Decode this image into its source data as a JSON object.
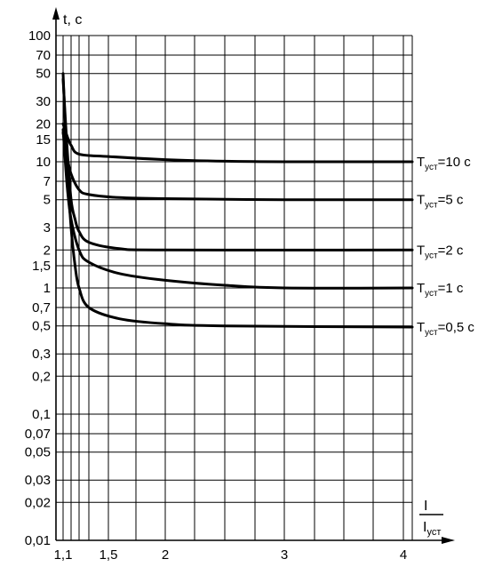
{
  "chart_data": {
    "type": "line",
    "ylabel": "t, с",
    "xlabel_num": "I",
    "xlabel_den_main": "I",
    "xlabel_den_sub": "уст",
    "x_ticks": [
      {
        "value": 1.1,
        "label": "1,1"
      },
      {
        "value": 1.5,
        "label": "1,5"
      },
      {
        "value": 2,
        "label": "2"
      },
      {
        "value": 3,
        "label": "3"
      },
      {
        "value": 4,
        "label": "4"
      }
    ],
    "y_ticks": [
      {
        "value": 100,
        "label": "100"
      },
      {
        "value": 70,
        "label": "70"
      },
      {
        "value": 50,
        "label": "50"
      },
      {
        "value": 30,
        "label": "30"
      },
      {
        "value": 20,
        "label": "20"
      },
      {
        "value": 15,
        "label": "15"
      },
      {
        "value": 10,
        "label": "10"
      },
      {
        "value": 7,
        "label": "7"
      },
      {
        "value": 5,
        "label": "5"
      },
      {
        "value": 3,
        "label": "3"
      },
      {
        "value": 2,
        "label": "2"
      },
      {
        "value": 1.5,
        "label": "1,5"
      },
      {
        "value": 1,
        "label": "1"
      },
      {
        "value": 0.7,
        "label": "0,7"
      },
      {
        "value": 0.5,
        "label": "0,5"
      },
      {
        "value": 0.3,
        "label": "0,3"
      },
      {
        "value": 0.2,
        "label": "0,2"
      },
      {
        "value": 0.1,
        "label": "0,1"
      },
      {
        "value": 0.07,
        "label": "0,07"
      },
      {
        "value": 0.05,
        "label": "0,05"
      },
      {
        "value": 0.03,
        "label": "0,03"
      },
      {
        "value": 0.02,
        "label": "0,02"
      },
      {
        "value": 0.01,
        "label": "0,01"
      }
    ],
    "x_gridlines": [
      1.1,
      1.2,
      1.3,
      1.4,
      1.5,
      1.75,
      2,
      2.25,
      2.5,
      2.75,
      3,
      3.25,
      3.5,
      3.75,
      4,
      4.25
    ],
    "xlim": [
      1.05,
      4.25
    ],
    "ylim": [
      0.01,
      100
    ],
    "yscale": "log",
    "grid": true,
    "series": [
      {
        "name": "Tуст=10 с",
        "label_main": "T",
        "label_sub": "уст",
        "label_tail": "=10 с",
        "points": [
          [
            1.1,
            20
          ],
          [
            1.15,
            16
          ],
          [
            1.2,
            13.5
          ],
          [
            1.3,
            11.5
          ],
          [
            1.5,
            11
          ],
          [
            2,
            10.4
          ],
          [
            2.5,
            10.1
          ],
          [
            3,
            10
          ],
          [
            4.25,
            10
          ]
        ]
      },
      {
        "name": "Tуст=5 с",
        "label_main": "T",
        "label_sub": "уст",
        "label_tail": "=5 с",
        "points": [
          [
            1.1,
            17
          ],
          [
            1.15,
            11
          ],
          [
            1.2,
            8
          ],
          [
            1.3,
            6
          ],
          [
            1.4,
            5.5
          ],
          [
            1.6,
            5.2
          ],
          [
            2,
            5.1
          ],
          [
            3,
            5
          ],
          [
            4.25,
            5
          ]
        ]
      },
      {
        "name": "Tуст=2 с",
        "label_main": "T",
        "label_sub": "уст",
        "label_tail": "=2 с",
        "points": [
          [
            1.1,
            45
          ],
          [
            1.15,
            13
          ],
          [
            1.2,
            5
          ],
          [
            1.25,
            3.5
          ],
          [
            1.3,
            2.8
          ],
          [
            1.4,
            2.3
          ],
          [
            1.6,
            2.05
          ],
          [
            2,
            2
          ],
          [
            4.25,
            2
          ]
        ]
      },
      {
        "name": "Tуст=1 с",
        "label_main": "T",
        "label_sub": "уст",
        "label_tail": "=1 с",
        "points": [
          [
            1.1,
            18
          ],
          [
            1.15,
            6.5
          ],
          [
            1.2,
            3.5
          ],
          [
            1.3,
            2
          ],
          [
            1.4,
            1.6
          ],
          [
            1.6,
            1.3
          ],
          [
            2,
            1.15
          ],
          [
            2.5,
            1.05
          ],
          [
            3,
            1
          ],
          [
            4.25,
            1
          ]
        ]
      },
      {
        "name": "Tуст=0,5 с",
        "label_main": "T",
        "label_sub": "уст",
        "label_tail": "=0,5 с",
        "points": [
          [
            1.1,
            50
          ],
          [
            1.15,
            9
          ],
          [
            1.2,
            3
          ],
          [
            1.25,
            1.5
          ],
          [
            1.3,
            1
          ],
          [
            1.4,
            0.7
          ],
          [
            1.6,
            0.57
          ],
          [
            2,
            0.52
          ],
          [
            2.5,
            0.5
          ],
          [
            4.25,
            0.49
          ]
        ]
      }
    ]
  }
}
